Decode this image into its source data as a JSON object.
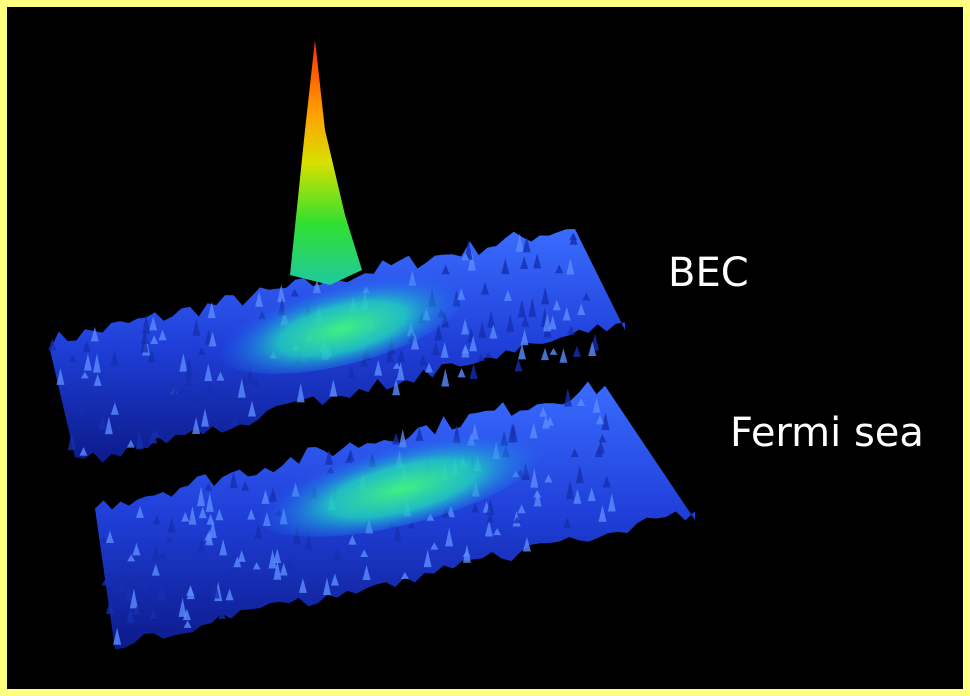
{
  "labels": {
    "upper": "BEC",
    "lower": "Fermi sea"
  }
}
